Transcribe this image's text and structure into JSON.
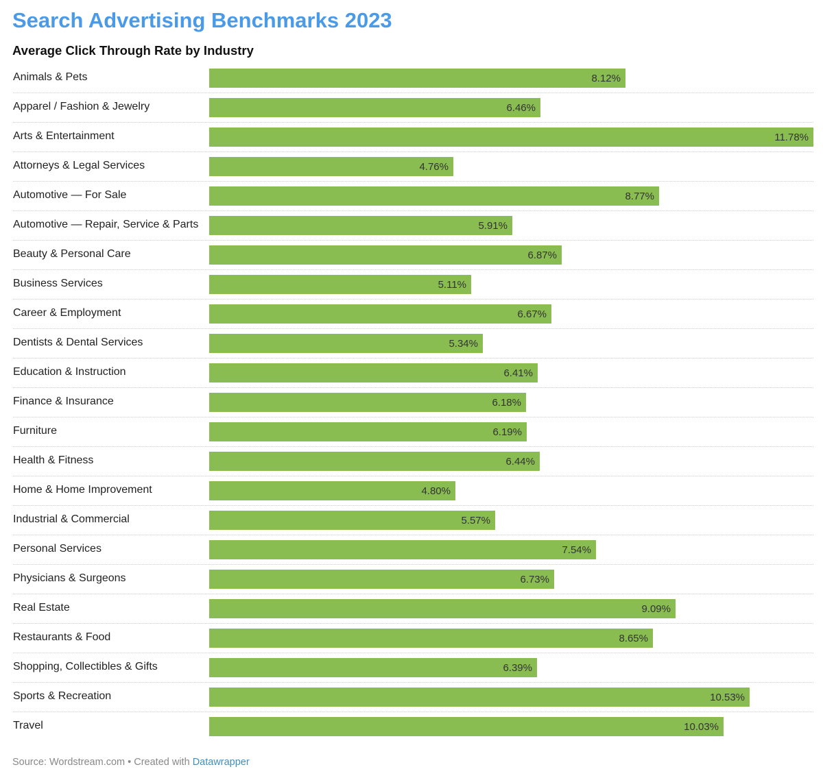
{
  "chart_data": {
    "type": "bar",
    "orientation": "horizontal",
    "title": "Search Advertising Benchmarks 2023",
    "subtitle": "Average Click Through Rate by Industry",
    "value_suffix": "%",
    "bar_color": "#89bd52",
    "xlim": [
      0,
      11.78
    ],
    "grid": false,
    "categories": [
      "Animals & Pets",
      "Apparel / Fashion & Jewelry",
      "Arts & Entertainment",
      "Attorneys & Legal Services",
      "Automotive — For Sale",
      "Automotive — Repair, Service & Parts",
      "Beauty & Personal Care",
      "Business Services",
      "Career & Employment",
      "Dentists & Dental Services",
      "Education & Instruction",
      "Finance & Insurance",
      "Furniture",
      "Health & Fitness",
      "Home & Home Improvement",
      "Industrial & Commercial",
      "Personal Services",
      "Physicians & Surgeons",
      "Real Estate",
      "Restaurants & Food",
      "Shopping, Collectibles & Gifts",
      "Sports & Recreation",
      "Travel"
    ],
    "values": [
      8.12,
      6.46,
      11.78,
      4.76,
      8.77,
      5.91,
      6.87,
      5.11,
      6.67,
      5.34,
      6.41,
      6.18,
      6.19,
      6.44,
      4.8,
      5.57,
      7.54,
      6.73,
      9.09,
      8.65,
      6.39,
      10.53,
      10.03
    ],
    "value_labels": [
      "8.12%",
      "6.46%",
      "11.78%",
      "4.76%",
      "8.77%",
      "5.91%",
      "6.87%",
      "5.11%",
      "6.67%",
      "5.34%",
      "6.41%",
      "6.18%",
      "6.19%",
      "6.44%",
      "4.80%",
      "5.57%",
      "7.54%",
      "6.73%",
      "9.09%",
      "8.65%",
      "6.39%",
      "10.53%",
      "10.03%"
    ]
  },
  "footer": {
    "source": "Source: Wordstream.com • Created with ",
    "link": "Datawrapper"
  }
}
